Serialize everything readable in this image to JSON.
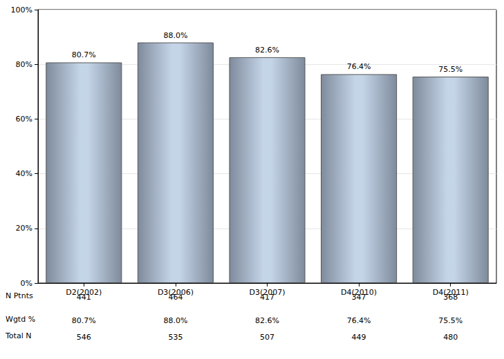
{
  "chart_data": {
    "type": "bar",
    "categories": [
      "D2(2002)",
      "D3(2006)",
      "D3(2007)",
      "D4(2010)",
      "D4(2011)"
    ],
    "values": [
      80.7,
      88.0,
      82.6,
      76.4,
      75.5
    ],
    "value_labels": [
      "80.7%",
      "88.0%",
      "82.6%",
      "76.4%",
      "75.5%"
    ],
    "data_labels": true,
    "color": "#c5d5e8",
    "ylim": [
      0,
      100
    ],
    "yticks": [
      {
        "value": 0,
        "label": "0%"
      },
      {
        "value": 20,
        "label": "20%"
      },
      {
        "value": 40,
        "label": "40%"
      },
      {
        "value": 60,
        "label": "60%"
      },
      {
        "value": 80,
        "label": "80%"
      },
      {
        "value": 100,
        "label": "100%"
      }
    ],
    "grid": true,
    "table": {
      "rows": [
        {
          "label": "N Ptnts",
          "values": [
            441,
            464,
            417,
            347,
            368
          ]
        },
        {
          "label": "Wgtd %",
          "values": [
            "80.7%",
            "88.0%",
            "82.6%",
            "76.4%",
            "75.5%"
          ]
        },
        {
          "label": "Total N",
          "values": [
            546,
            535,
            507,
            449,
            480
          ]
        }
      ]
    }
  }
}
